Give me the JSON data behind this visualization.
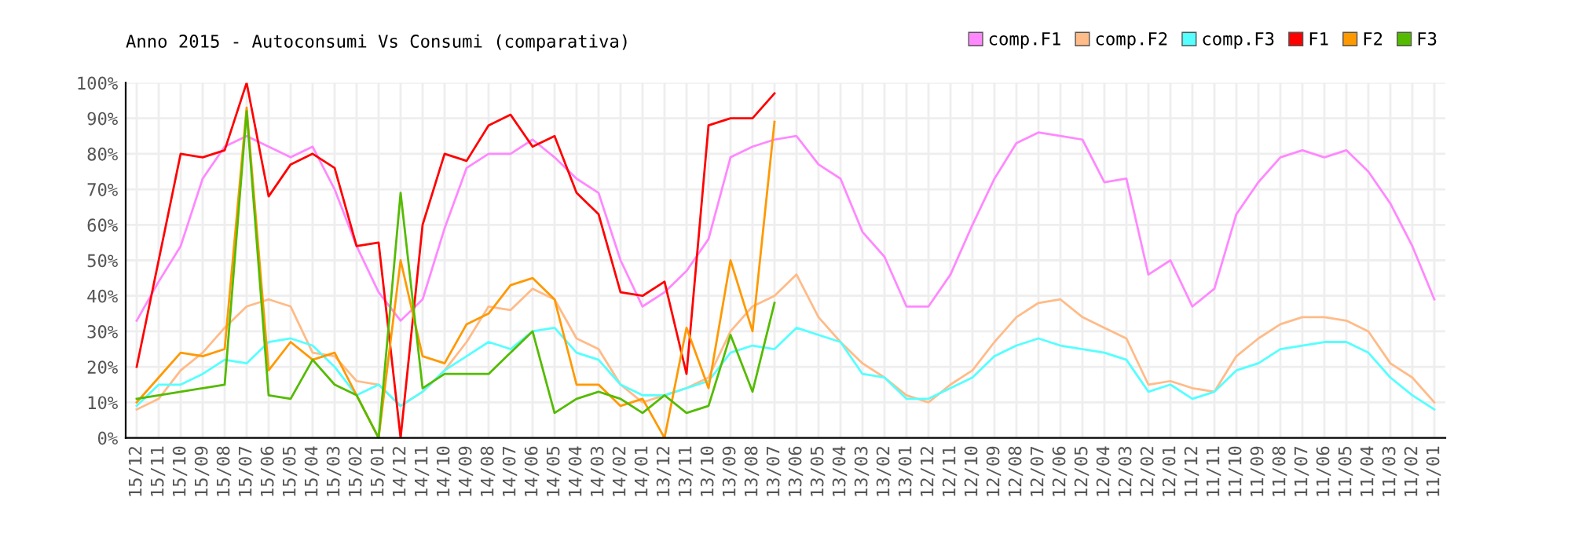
{
  "chart_data": {
    "type": "line",
    "title": "Anno 2015 - Autoconsumi Vs Consumi (comparativa)",
    "categories": [
      "15/12",
      "15/11",
      "15/10",
      "15/09",
      "15/08",
      "15/07",
      "15/06",
      "15/05",
      "15/04",
      "15/03",
      "15/02",
      "15/01",
      "14/12",
      "14/11",
      "14/10",
      "14/09",
      "14/08",
      "14/07",
      "14/06",
      "14/05",
      "14/04",
      "14/03",
      "14/02",
      "14/01",
      "13/12",
      "13/11",
      "13/10",
      "13/09",
      "13/08",
      "13/07",
      "13/06",
      "13/05",
      "13/04",
      "13/03",
      "13/02",
      "13/01",
      "12/12",
      "12/11",
      "12/10",
      "12/09",
      "12/08",
      "12/07",
      "12/06",
      "12/05",
      "12/04",
      "12/03",
      "12/02",
      "12/01",
      "11/12",
      "11/11",
      "11/10",
      "11/09",
      "11/08",
      "11/07",
      "11/06",
      "11/05",
      "11/04",
      "11/03",
      "11/02",
      "11/01"
    ],
    "series": [
      {
        "name": "comp.F1",
        "color": "#ff88ff",
        "values": [
          33,
          44,
          54,
          73,
          82,
          85,
          82,
          79,
          82,
          70,
          54,
          41,
          33,
          39,
          59,
          76,
          80,
          80,
          84,
          79,
          73,
          69,
          50,
          37,
          41,
          47,
          56,
          79,
          82,
          84,
          85,
          77,
          73,
          58,
          51,
          37,
          37,
          46,
          60,
          73,
          83,
          86,
          85,
          84,
          72,
          73,
          46,
          50,
          37,
          42,
          63,
          72,
          79,
          81,
          79,
          81,
          75,
          66,
          54,
          39
        ]
      },
      {
        "name": "comp.F2",
        "color": "#ffbb88",
        "values": [
          8,
          11,
          19,
          24,
          31,
          37,
          39,
          37,
          24,
          23,
          16,
          15,
          9,
          13,
          19,
          27,
          37,
          36,
          42,
          39,
          28,
          25,
          15,
          10,
          12,
          14,
          17,
          30,
          37,
          40,
          46,
          34,
          27,
          21,
          17,
          12,
          10,
          15,
          19,
          27,
          34,
          38,
          39,
          34,
          31,
          28,
          15,
          16,
          14,
          13,
          23,
          28,
          32,
          34,
          34,
          33,
          30,
          21,
          17,
          10
        ]
      },
      {
        "name": "comp.F3",
        "color": "#55ffff",
        "values": [
          9,
          15,
          15,
          18,
          22,
          21,
          27,
          28,
          26,
          20,
          12,
          15,
          9,
          13,
          19,
          23,
          27,
          25,
          30,
          31,
          24,
          22,
          15,
          12,
          12,
          14,
          16,
          24,
          26,
          25,
          31,
          29,
          27,
          18,
          17,
          11,
          11,
          14,
          17,
          23,
          26,
          28,
          26,
          25,
          24,
          22,
          13,
          15,
          11,
          13,
          19,
          21,
          25,
          26,
          27,
          27,
          24,
          17,
          12,
          8
        ]
      },
      {
        "name": "F1",
        "color": "#ff0000",
        "values": [
          20,
          50,
          80,
          79,
          81,
          100,
          68,
          77,
          80,
          76,
          54,
          55,
          0,
          60,
          80,
          78,
          88,
          91,
          82,
          85,
          69,
          63,
          41,
          40,
          44,
          18,
          88,
          90,
          90,
          97,
          null,
          null,
          null,
          null,
          null,
          null,
          null,
          null,
          null,
          null,
          null,
          null,
          null,
          null,
          null,
          null,
          null,
          null,
          null,
          null,
          null,
          null,
          null,
          null,
          null,
          null,
          null,
          null,
          null,
          null
        ]
      },
      {
        "name": "F2",
        "color": "#ff9900",
        "values": [
          10,
          17,
          24,
          23,
          25,
          93,
          19,
          27,
          22,
          24,
          12,
          0,
          50,
          23,
          21,
          32,
          35,
          43,
          45,
          39,
          15,
          15,
          9,
          11,
          0,
          31,
          14,
          50,
          30,
          89,
          null,
          null,
          null,
          null,
          null,
          null,
          null,
          null,
          null,
          null,
          null,
          null,
          null,
          null,
          null,
          null,
          null,
          null,
          null,
          null,
          null,
          null,
          null,
          null,
          null,
          null,
          null,
          null,
          null,
          null
        ]
      },
      {
        "name": "F3",
        "color": "#55bb00",
        "values": [
          11,
          12,
          13,
          14,
          15,
          92,
          12,
          11,
          22,
          15,
          12,
          0,
          69,
          14,
          18,
          18,
          18,
          24,
          30,
          7,
          11,
          13,
          11,
          7,
          12,
          7,
          9,
          29,
          13,
          38,
          null,
          null,
          null,
          null,
          null,
          null,
          null,
          null,
          null,
          null,
          null,
          null,
          null,
          null,
          null,
          null,
          null,
          null,
          null,
          null,
          null,
          null,
          null,
          null,
          null,
          null,
          null,
          null,
          null,
          null
        ]
      }
    ],
    "ylim": [
      0,
      100
    ],
    "yticks": [
      {
        "value": 0,
        "label": "0%"
      },
      {
        "value": 10,
        "label": "10%"
      },
      {
        "value": 20,
        "label": "20%"
      },
      {
        "value": 30,
        "label": "30%"
      },
      {
        "value": 40,
        "label": "40%"
      },
      {
        "value": 50,
        "label": "50%"
      },
      {
        "value": 60,
        "label": "60%"
      },
      {
        "value": 70,
        "label": "70%"
      },
      {
        "value": 80,
        "label": "80%"
      },
      {
        "value": 90,
        "label": "90%"
      },
      {
        "value": 100,
        "label": "100%"
      }
    ],
    "grid": true,
    "legend": "top right"
  }
}
